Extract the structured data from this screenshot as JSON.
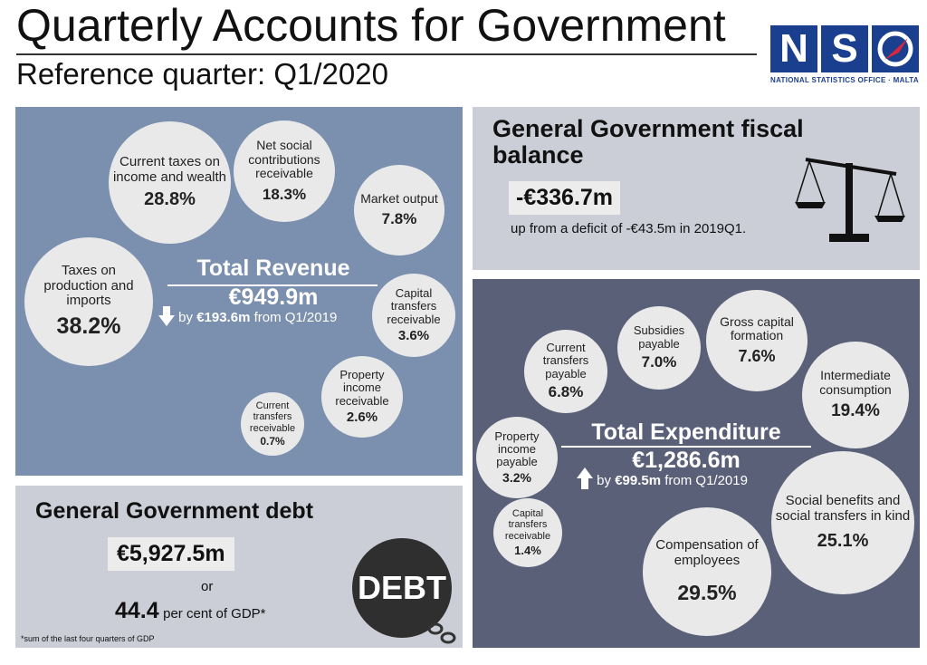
{
  "header": {
    "title": "Quarterly Accounts for Government",
    "subtitle": "Reference quarter: Q1/2020"
  },
  "logo": {
    "letters": [
      "N",
      "S",
      "O"
    ],
    "tagline": "NATIONAL STATISTICS OFFICE · MALTA",
    "color": "#1b3f8f"
  },
  "colors": {
    "revenue_panel": "#7b8fae",
    "expenditure_panel": "#5b6079",
    "light_panel": "#cbced6",
    "bubble": "#e9e9e9"
  },
  "revenue": {
    "title": "Total Revenue",
    "value": "€949.9m",
    "change_prefix": "by",
    "change_value": "€193.6m",
    "change_suffix": "from Q1/2019",
    "direction": "down",
    "items": [
      {
        "label": "Current taxes on income and wealth",
        "pct": "28.8%"
      },
      {
        "label": "Net social contributions receivable",
        "pct": "18.3%"
      },
      {
        "label": "Market output",
        "pct": "7.8%"
      },
      {
        "label": "Taxes on production and imports",
        "pct": "38.2%"
      },
      {
        "label": "Capital transfers receivable",
        "pct": "3.6%"
      },
      {
        "label": "Property income receivable",
        "pct": "2.6%"
      },
      {
        "label": "Current transfers receivable",
        "pct": "0.7%"
      }
    ]
  },
  "fiscal": {
    "title": "General Government fiscal balance",
    "value": "-€336.7m",
    "note": "up from a deficit of -€43.5m in 2019Q1."
  },
  "expenditure": {
    "title": "Total Expenditure",
    "value": "€1,286.6m",
    "change_prefix": "by",
    "change_value": "€99.5m",
    "change_suffix": "from Q1/2019",
    "direction": "up",
    "items": [
      {
        "label": "Current transfers payable",
        "pct": "6.8%"
      },
      {
        "label": "Subsidies payable",
        "pct": "7.0%"
      },
      {
        "label": "Gross capital formation",
        "pct": "7.6%"
      },
      {
        "label": "Intermediate consumption",
        "pct": "19.4%"
      },
      {
        "label": "Property income payable",
        "pct": "3.2%"
      },
      {
        "label": "Social benefits and social transfers in kind",
        "pct": "25.1%"
      },
      {
        "label": "Capital transfers receivable",
        "pct": "1.4%"
      },
      {
        "label": "Compensation of employees",
        "pct": "29.5%"
      }
    ]
  },
  "debt": {
    "title": "General Government debt",
    "value": "€5,927.5m",
    "or": "or",
    "pct_value": "44.4",
    "pct_text": "per cent of GDP*",
    "footnote": "*sum of the last four quarters of GDP",
    "ball_label": "DEBT"
  }
}
